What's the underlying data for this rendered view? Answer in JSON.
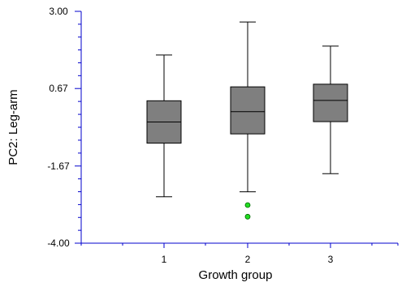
{
  "chart_data": {
    "type": "box",
    "xlabel": "Growth group",
    "ylabel": "PC2: Leg-arm",
    "ylim": [
      -4.0,
      3.0
    ],
    "y_ticks": [
      "3.00",
      "0.67",
      "-1.67",
      "-4.00"
    ],
    "categories": [
      "1",
      "2",
      "3"
    ],
    "boxes": [
      {
        "category": "1",
        "whisker_low": -2.6,
        "q1": -0.98,
        "median": -0.34,
        "q3": 0.3,
        "whisker_high": 1.68,
        "outliers": []
      },
      {
        "category": "2",
        "whisker_low": -2.45,
        "q1": -0.7,
        "median": -0.03,
        "q3": 0.72,
        "whisker_high": 2.68,
        "outliers": [
          -2.85,
          -3.2
        ]
      },
      {
        "category": "3",
        "whisker_low": -1.9,
        "q1": -0.33,
        "median": 0.31,
        "q3": 0.8,
        "whisker_high": 1.95,
        "outliers": []
      }
    ],
    "colors": {
      "box_fill": "#7f7f7f",
      "axis": "#0000cc",
      "outlier": "#22dd22"
    }
  }
}
